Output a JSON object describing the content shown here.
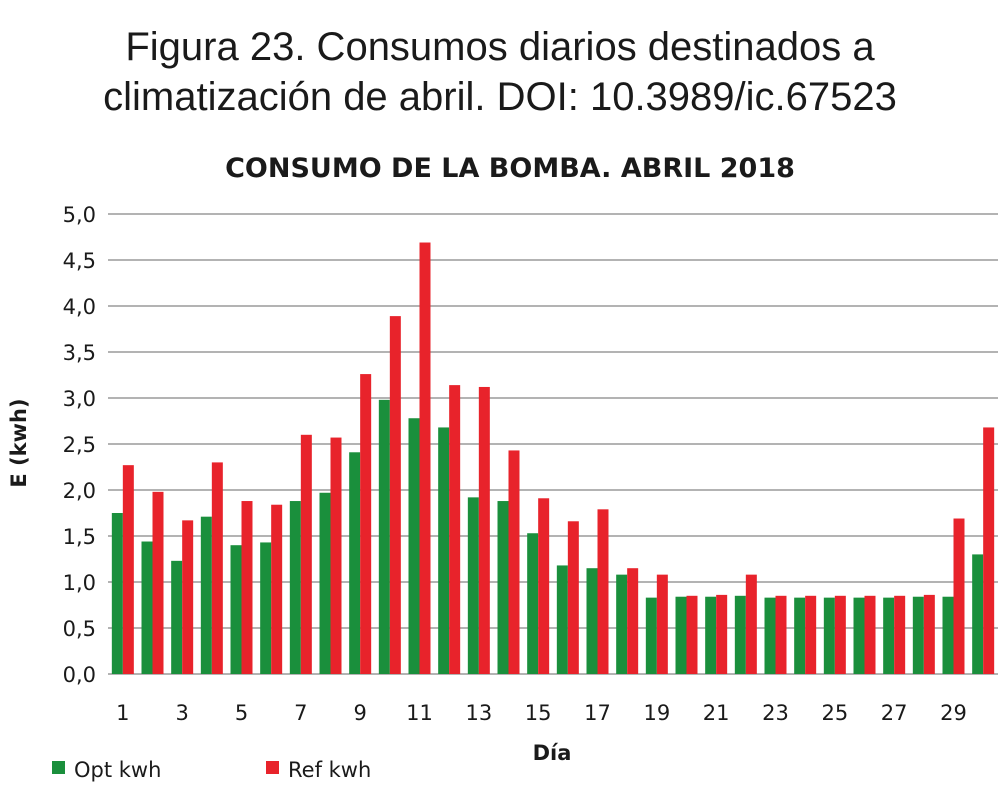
{
  "caption": {
    "line1": "Figura 23. Consumos diarios destinados a",
    "line2": "climatización de abril. DOI: 10.3989/ic.67523"
  },
  "chart_data": {
    "type": "bar",
    "title": "CONSUMO DE LA BOMBA. ABRIL 2018",
    "xlabel": "Día",
    "ylabel": "E (kwh)",
    "ylim": [
      0,
      5
    ],
    "yticks": [
      "0,0",
      "0,5",
      "1,0",
      "1,5",
      "2,0",
      "2,5",
      "3,0",
      "3,5",
      "4,0",
      "4,5",
      "5,0"
    ],
    "grid": true,
    "legend_position": "bottom-left",
    "categories": [
      1,
      2,
      3,
      4,
      5,
      6,
      7,
      8,
      9,
      10,
      11,
      12,
      13,
      14,
      15,
      16,
      17,
      18,
      19,
      20,
      21,
      22,
      23,
      24,
      25,
      26,
      27,
      28,
      29,
      30
    ],
    "x_tick_labels": [
      "1",
      "3",
      "5",
      "7",
      "9",
      "11",
      "13",
      "15",
      "17",
      "19",
      "21",
      "23",
      "25",
      "27",
      "29"
    ],
    "series": [
      {
        "name": "Opt kwh",
        "color": "#1a8f3c",
        "values": [
          1.75,
          1.44,
          1.23,
          1.71,
          1.4,
          1.43,
          1.88,
          1.97,
          2.41,
          2.98,
          2.78,
          2.68,
          1.92,
          1.88,
          1.53,
          1.18,
          1.15,
          1.08,
          0.83,
          0.84,
          0.84,
          0.85,
          0.83,
          0.83,
          0.83,
          0.83,
          0.83,
          0.84,
          0.84,
          1.3
        ]
      },
      {
        "name": "Ref kwh",
        "color": "#e8232b",
        "values": [
          2.27,
          1.98,
          1.67,
          2.3,
          1.88,
          1.84,
          2.6,
          2.57,
          3.26,
          3.89,
          4.69,
          3.14,
          3.12,
          2.43,
          1.91,
          1.66,
          1.79,
          1.15,
          1.08,
          0.85,
          0.86,
          1.08,
          0.85,
          0.85,
          0.85,
          0.85,
          0.85,
          0.86,
          1.69,
          2.68
        ]
      }
    ]
  }
}
